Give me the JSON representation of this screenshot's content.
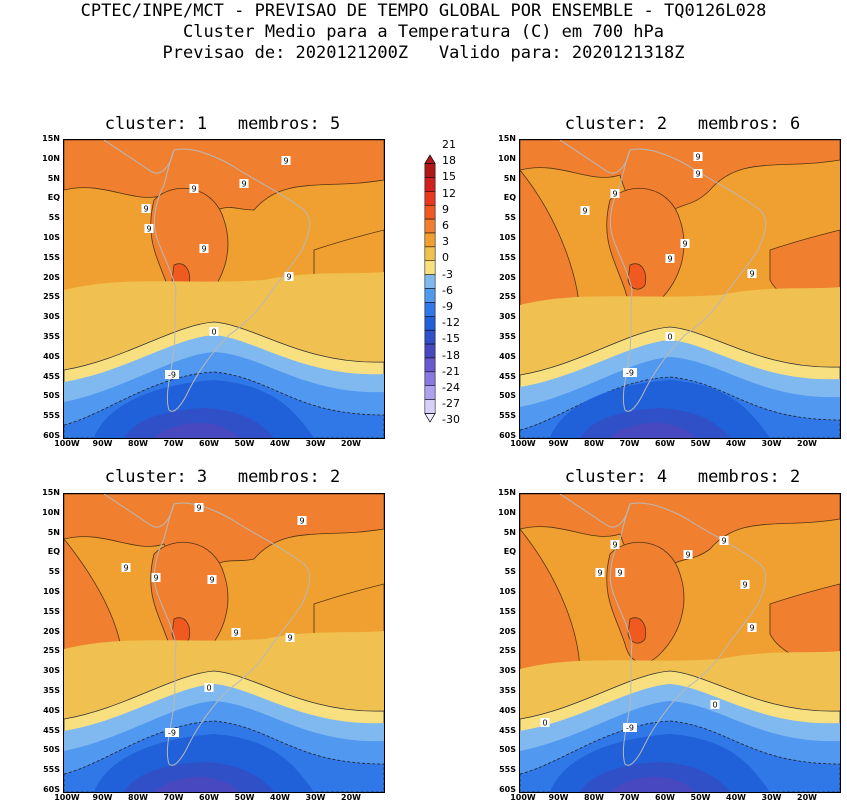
{
  "header": {
    "line1": "CPTEC/INPE/MCT - PREVISAO DE TEMPO GLOBAL POR ENSEMBLE - TQ0126L028",
    "line2": "Cluster Medio para a Temperatura (C) em 700 hPa",
    "line3": "Previsao de: 2020121200Z   Valido para: 2020121318Z"
  },
  "panels": [
    {
      "title": "cluster: 1   membros: 5",
      "contour_labels": [
        "9",
        "9",
        "9",
        "9",
        "9",
        "9",
        "9",
        "0",
        "-9"
      ]
    },
    {
      "title": "cluster: 2   membros: 6",
      "contour_labels": [
        "9",
        "9",
        "9",
        "9",
        "9",
        "9",
        "9",
        "0",
        "-9"
      ]
    },
    {
      "title": "cluster: 3   membros: 2",
      "contour_labels": [
        "9",
        "9",
        "9",
        "9",
        "9",
        "9",
        "9",
        "0",
        "-9"
      ]
    },
    {
      "title": "cluster: 4   membros: 2",
      "contour_labels": [
        "9",
        "9",
        "9",
        "9",
        "9",
        "9",
        "9",
        "0",
        "0",
        "-9"
      ]
    }
  ],
  "lat_labels": [
    "15N",
    "10N",
    "5N",
    "EQ",
    "5S",
    "10S",
    "15S",
    "20S",
    "25S",
    "30S",
    "35S",
    "40S",
    "45S",
    "50S",
    "55S",
    "60S"
  ],
  "lon_labels": [
    "100W",
    "90W",
    "80W",
    "70W",
    "60W",
    "50W",
    "40W",
    "30W",
    "20W"
  ],
  "colorbar": {
    "labels": [
      "21",
      "18",
      "15",
      "12",
      "9",
      "6",
      "3",
      "0",
      "-3",
      "-6",
      "-9",
      "-12",
      "-15",
      "-18",
      "-21",
      "-24",
      "-27",
      "-30"
    ],
    "colors": [
      "#b01818",
      "#d02020",
      "#e83820",
      "#f05a20",
      "#f08030",
      "#f0a030",
      "#f0c050",
      "#f8e080",
      "#80b8f0",
      "#5098f0",
      "#3078e8",
      "#2060d8",
      "#3050c8",
      "#4848c0",
      "#6a58d0",
      "#8a78e0",
      "#b0a0f0",
      "#d8d0f8"
    ]
  }
}
